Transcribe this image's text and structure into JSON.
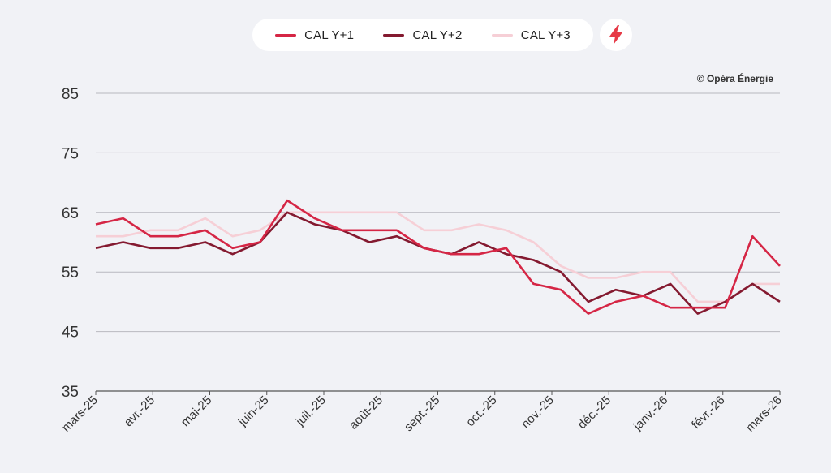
{
  "copyright": "© Opéra Énergie",
  "colors": {
    "y1": "#d52645",
    "y2": "#841a30",
    "y3": "#f6cfd6",
    "grid": "#b8b8bf",
    "bolt": "#e63946"
  },
  "legend": {
    "items": [
      {
        "label": "CAL Y+1",
        "color": "#d52645"
      },
      {
        "label": "CAL Y+2",
        "color": "#841a30"
      },
      {
        "label": "CAL Y+3",
        "color": "#f6cfd6"
      }
    ],
    "action_icon": "lightning-bolt-icon"
  },
  "chart_data": {
    "type": "line",
    "title": "",
    "xlabel": "",
    "ylabel": "",
    "ylim": [
      35,
      85
    ],
    "yticks": [
      35,
      45,
      55,
      65,
      75,
      85
    ],
    "grid": true,
    "legend_position": "top-center",
    "xticks": [
      "mars-25",
      "avr.-25",
      "mai-25",
      "juin-25",
      "juil.-25",
      "août-25",
      "sept.-25",
      "oct.-25",
      "nov.-25",
      "déc.-25",
      "janv.-26",
      "févr.-26",
      "mars-26"
    ],
    "x": [
      "mars-25",
      "mi-mars-25",
      "avr.-25",
      "mi-avr.-25",
      "mai-25",
      "mi-mai-25",
      "juin-25",
      "mi-juin-25",
      "juil.-25",
      "mi-juil.-25",
      "août-25",
      "mi-août-25",
      "sept.-25",
      "mi-sept.-25",
      "oct.-25",
      "mi-oct.-25",
      "nov.-25",
      "mi-nov.-25",
      "déc.-25",
      "mi-déc.-25",
      "janv.-26",
      "mi-janv.-26",
      "févr.-26",
      "mi-févr.-26",
      "fin-févr.-26",
      "mars-26"
    ],
    "series": [
      {
        "name": "CAL Y+1",
        "values": [
          63,
          64,
          61,
          61,
          62,
          59,
          60,
          67,
          64,
          62,
          62,
          62,
          59,
          58,
          58,
          59,
          53,
          52,
          48,
          50,
          51,
          49,
          49,
          49,
          61,
          56
        ]
      },
      {
        "name": "CAL Y+2",
        "values": [
          59,
          60,
          59,
          59,
          60,
          58,
          60,
          65,
          63,
          62,
          60,
          61,
          59,
          58,
          60,
          58,
          57,
          55,
          50,
          52,
          51,
          53,
          48,
          50,
          53,
          50
        ]
      },
      {
        "name": "CAL Y+3",
        "values": [
          61,
          61,
          62,
          62,
          64,
          61,
          62,
          65,
          65,
          65,
          65,
          65,
          62,
          62,
          63,
          62,
          60,
          56,
          54,
          54,
          55,
          55,
          50,
          50,
          53,
          53
        ]
      }
    ]
  }
}
